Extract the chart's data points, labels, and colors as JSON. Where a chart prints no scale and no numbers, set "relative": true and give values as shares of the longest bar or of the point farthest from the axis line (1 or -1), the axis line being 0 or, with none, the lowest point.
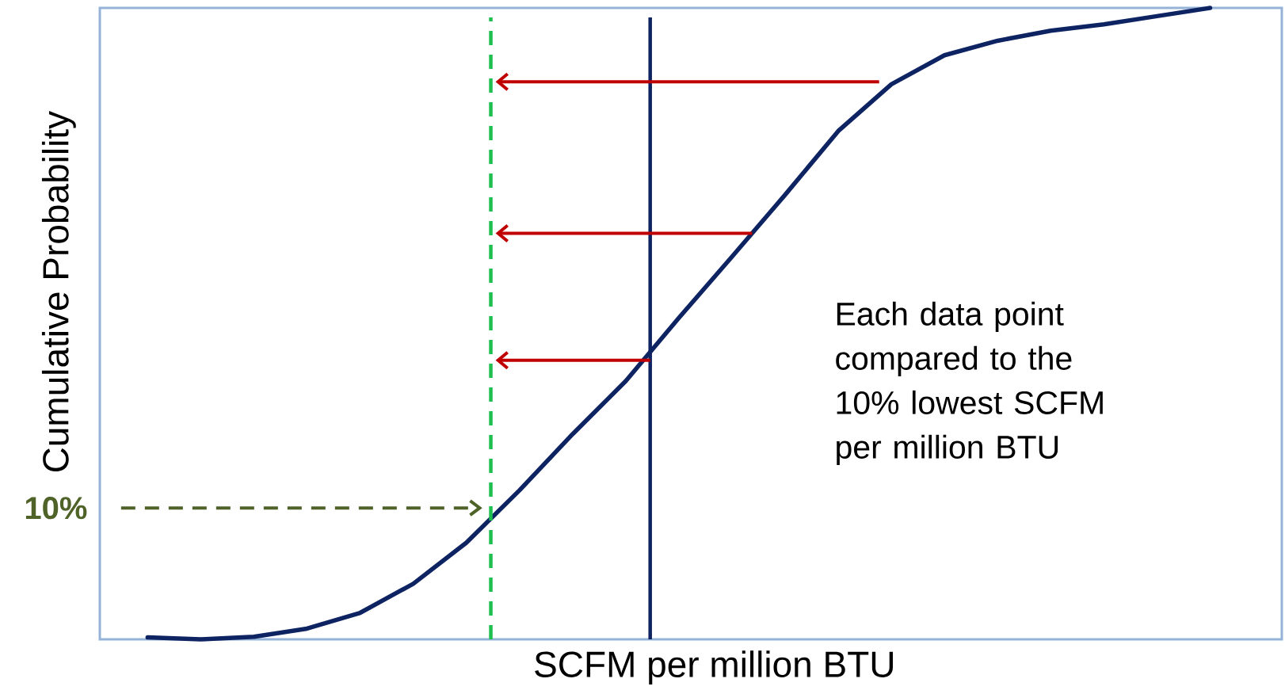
{
  "chart_data": {
    "type": "line",
    "relative": true,
    "xlabel": "SCFM per million BTU",
    "ylabel": "Cumulative Probability",
    "categories": [
      null,
      null,
      null,
      null,
      null,
      null,
      null,
      null,
      null,
      null,
      null,
      null,
      null,
      null,
      null,
      null,
      null,
      null,
      null,
      null,
      null
    ],
    "series": [
      {
        "color": "#0d2362",
        "values": [
          0.003,
          0,
          0.004,
          0.017,
          0.042,
          0.088,
          0.153,
          0.236,
          0.325,
          0.409,
          0.509,
          0.606,
          0.704,
          0.805,
          0.879,
          0.925,
          0.948,
          0.964,
          0.974,
          0.987,
          1
        ]
      }
    ],
    "annotations": [
      "10%",
      "Each data point compared to the 10% lowest SCFM per million BTU"
    ]
  }
}
